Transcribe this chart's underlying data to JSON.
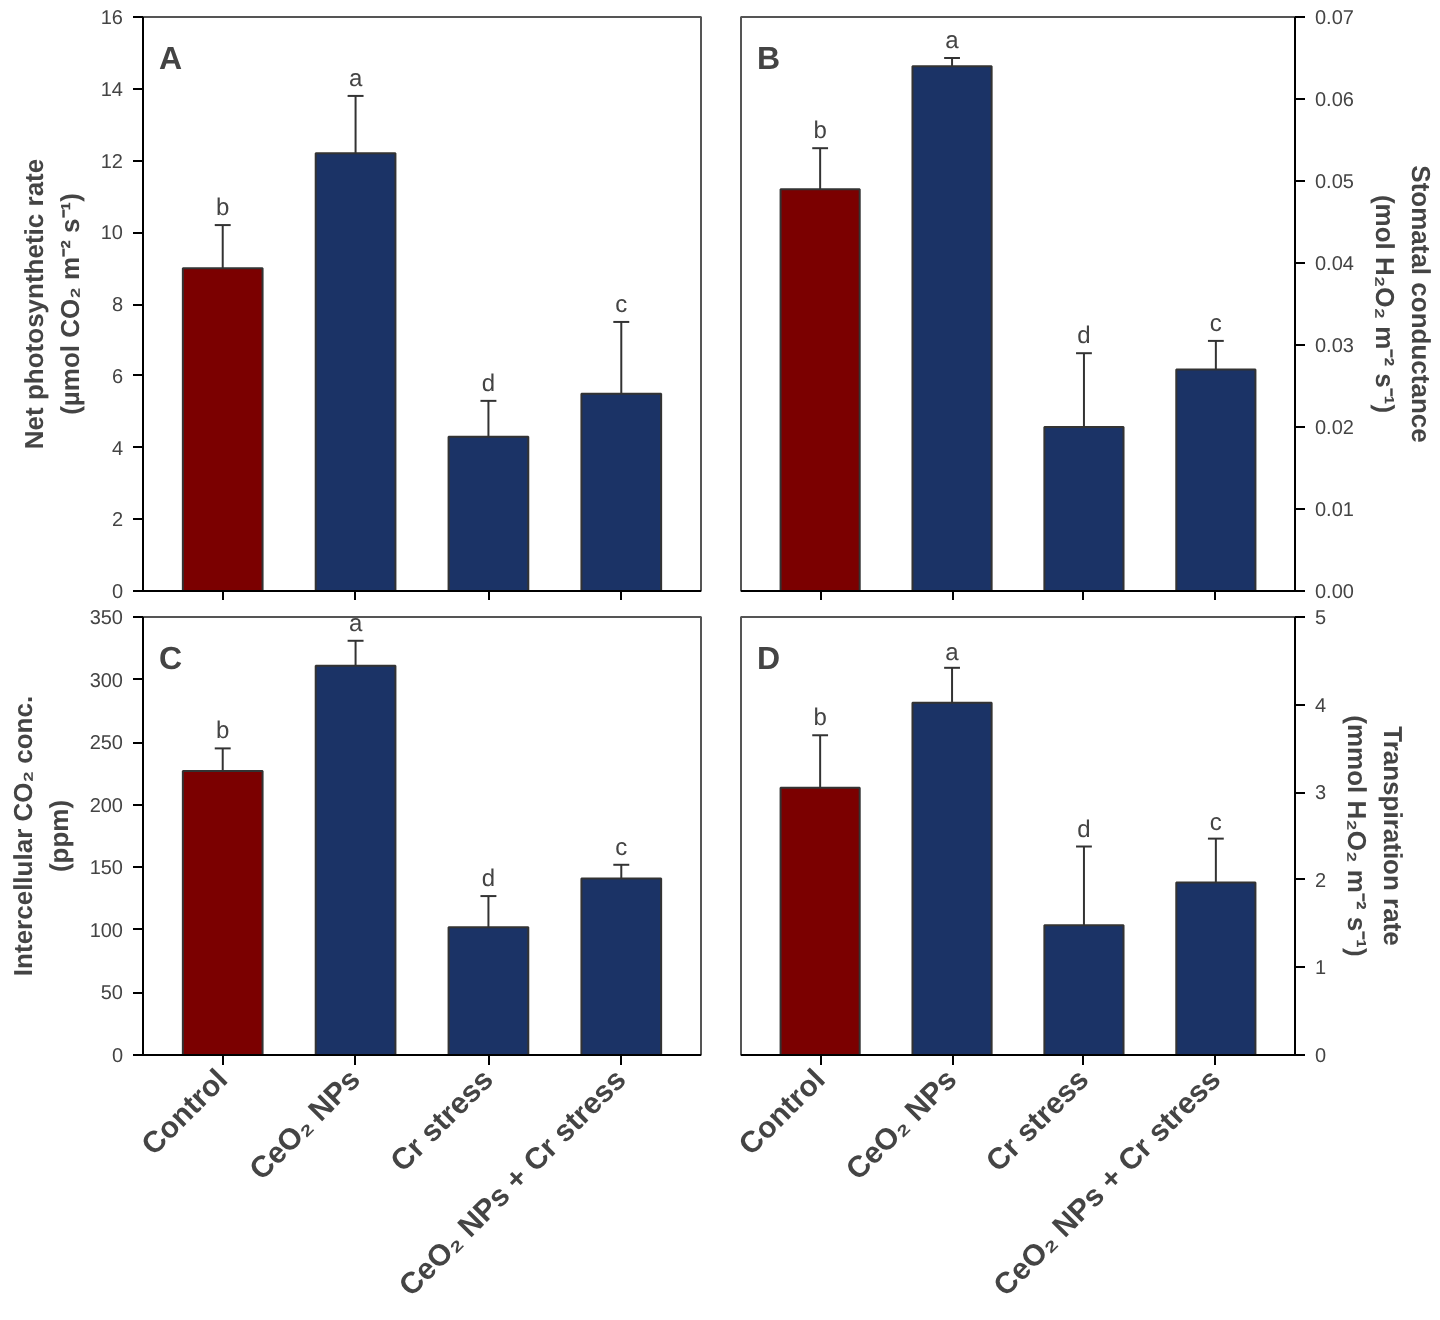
{
  "chart_data": [
    {
      "type": "bar",
      "title": "A",
      "categories": [
        "Control",
        "CeO₂ NPs",
        "Cr stress",
        "CeO₂ NPs + Cr stress"
      ],
      "ylabel": "Net photosynthetic rate\n(µmol CO₂ m⁻² s⁻¹)",
      "ylim": [
        0,
        16
      ],
      "yticks": [
        0,
        2,
        4,
        6,
        8,
        10,
        12,
        14,
        16
      ],
      "tick_labels": "y",
      "series": [
        {
          "colors": [
            "#7b0000",
            "#1b3366",
            "#1b3366",
            "#1b3366"
          ],
          "values": [
            9.0,
            12.2,
            4.3,
            5.5
          ],
          "errors": [
            1.2,
            1.6,
            1.0,
            2.0
          ]
        }
      ],
      "annotations": [
        {
          "text": "b",
          "x": "Control",
          "y": 10.2
        },
        {
          "text": "a",
          "x": "CeO₂ NPs",
          "y": 13.8
        },
        {
          "text": "d",
          "x": "Cr stress",
          "y": 5.3
        },
        {
          "text": "c",
          "x": "CeO₂ NPs + Cr stress",
          "y": 7.5
        }
      ]
    },
    {
      "type": "bar",
      "title": "B",
      "categories": [
        "Control",
        "CeO₂ NPs",
        "Cr stress",
        "CeO₂ NPs + Cr stress"
      ],
      "ylabel": "Stomatal conductance\n(mol H₂O₂ m⁻² s⁻¹)",
      "ylim": [
        0,
        0.07
      ],
      "yticks": [
        {
          "value": 0,
          "label": "0.00"
        },
        0.01,
        0.02,
        0.03,
        0.04,
        0.05,
        0.06,
        0.07
      ],
      "tick_labels": "y",
      "series": [
        {
          "colors": [
            "#7b0000",
            "#1b3366",
            "#1b3366",
            "#1b3366"
          ],
          "values": [
            0.049,
            0.064,
            0.02,
            0.027
          ],
          "errors": [
            0.005,
            0.001,
            0.009,
            0.0035
          ]
        }
      ],
      "annotations": [
        {
          "text": "b",
          "x": "Control",
          "y": 0.054
        },
        {
          "text": "a",
          "x": "CeO₂ NPs",
          "y": 0.065
        },
        {
          "text": "d",
          "x": "Cr stress",
          "y": 0.029
        },
        {
          "text": "c",
          "x": "CeO₂ NPs + Cr stress",
          "y": 0.0305
        }
      ]
    },
    {
      "type": "bar",
      "title": "C",
      "categories": [
        "Control",
        "CeO₂ NPs",
        "Cr stress",
        "CeO₂ NPs + Cr stress"
      ],
      "ylabel": "Intercellular CO₂ conc.\n(ppm)",
      "ylim": [
        0,
        350
      ],
      "yticks": [
        0,
        50,
        100,
        150,
        200,
        250,
        300,
        350
      ],
      "series": [
        {
          "colors": [
            "#7b0000",
            "#1b3366",
            "#1b3366",
            "#1b3366"
          ],
          "values": [
            227,
            311,
            102,
            141
          ],
          "errors": [
            18,
            20,
            25,
            11
          ]
        }
      ],
      "annotations": [
        {
          "text": "b",
          "x": "Control",
          "y": 245
        },
        {
          "text": "a",
          "x": "CeO₂ NPs",
          "y": 331
        },
        {
          "text": "d",
          "x": "Cr stress",
          "y": 127
        },
        {
          "text": "c",
          "x": "CeO₂ NPs + Cr stress",
          "y": 152
        }
      ]
    },
    {
      "type": "bar",
      "title": "D",
      "categories": [
        "Control",
        "CeO₂ NPs",
        "Cr stress",
        "CeO₂ NPs + Cr stress"
      ],
      "ylabel": "Transpiration rate\n(mmol H₂O₂ m⁻² s⁻¹)",
      "ylim": [
        0,
        5
      ],
      "yticks": [
        0,
        1,
        2,
        3,
        4,
        5
      ],
      "series": [
        {
          "colors": [
            "#7b0000",
            "#1b3366",
            "#1b3366",
            "#1b3366"
          ],
          "values": [
            3.05,
            4.02,
            1.48,
            1.97
          ],
          "errors": [
            0.6,
            0.4,
            0.9,
            0.5
          ]
        }
      ],
      "annotations": [
        {
          "text": "b",
          "x": "Control",
          "y": 3.65
        },
        {
          "text": "a",
          "x": "CeO₂ NPs",
          "y": 4.4
        },
        {
          "text": "d",
          "x": "Cr stress",
          "y": 2.38
        },
        {
          "text": "c",
          "x": "CeO₂ NPs + Cr stress",
          "y": 2.46
        }
      ]
    }
  ]
}
